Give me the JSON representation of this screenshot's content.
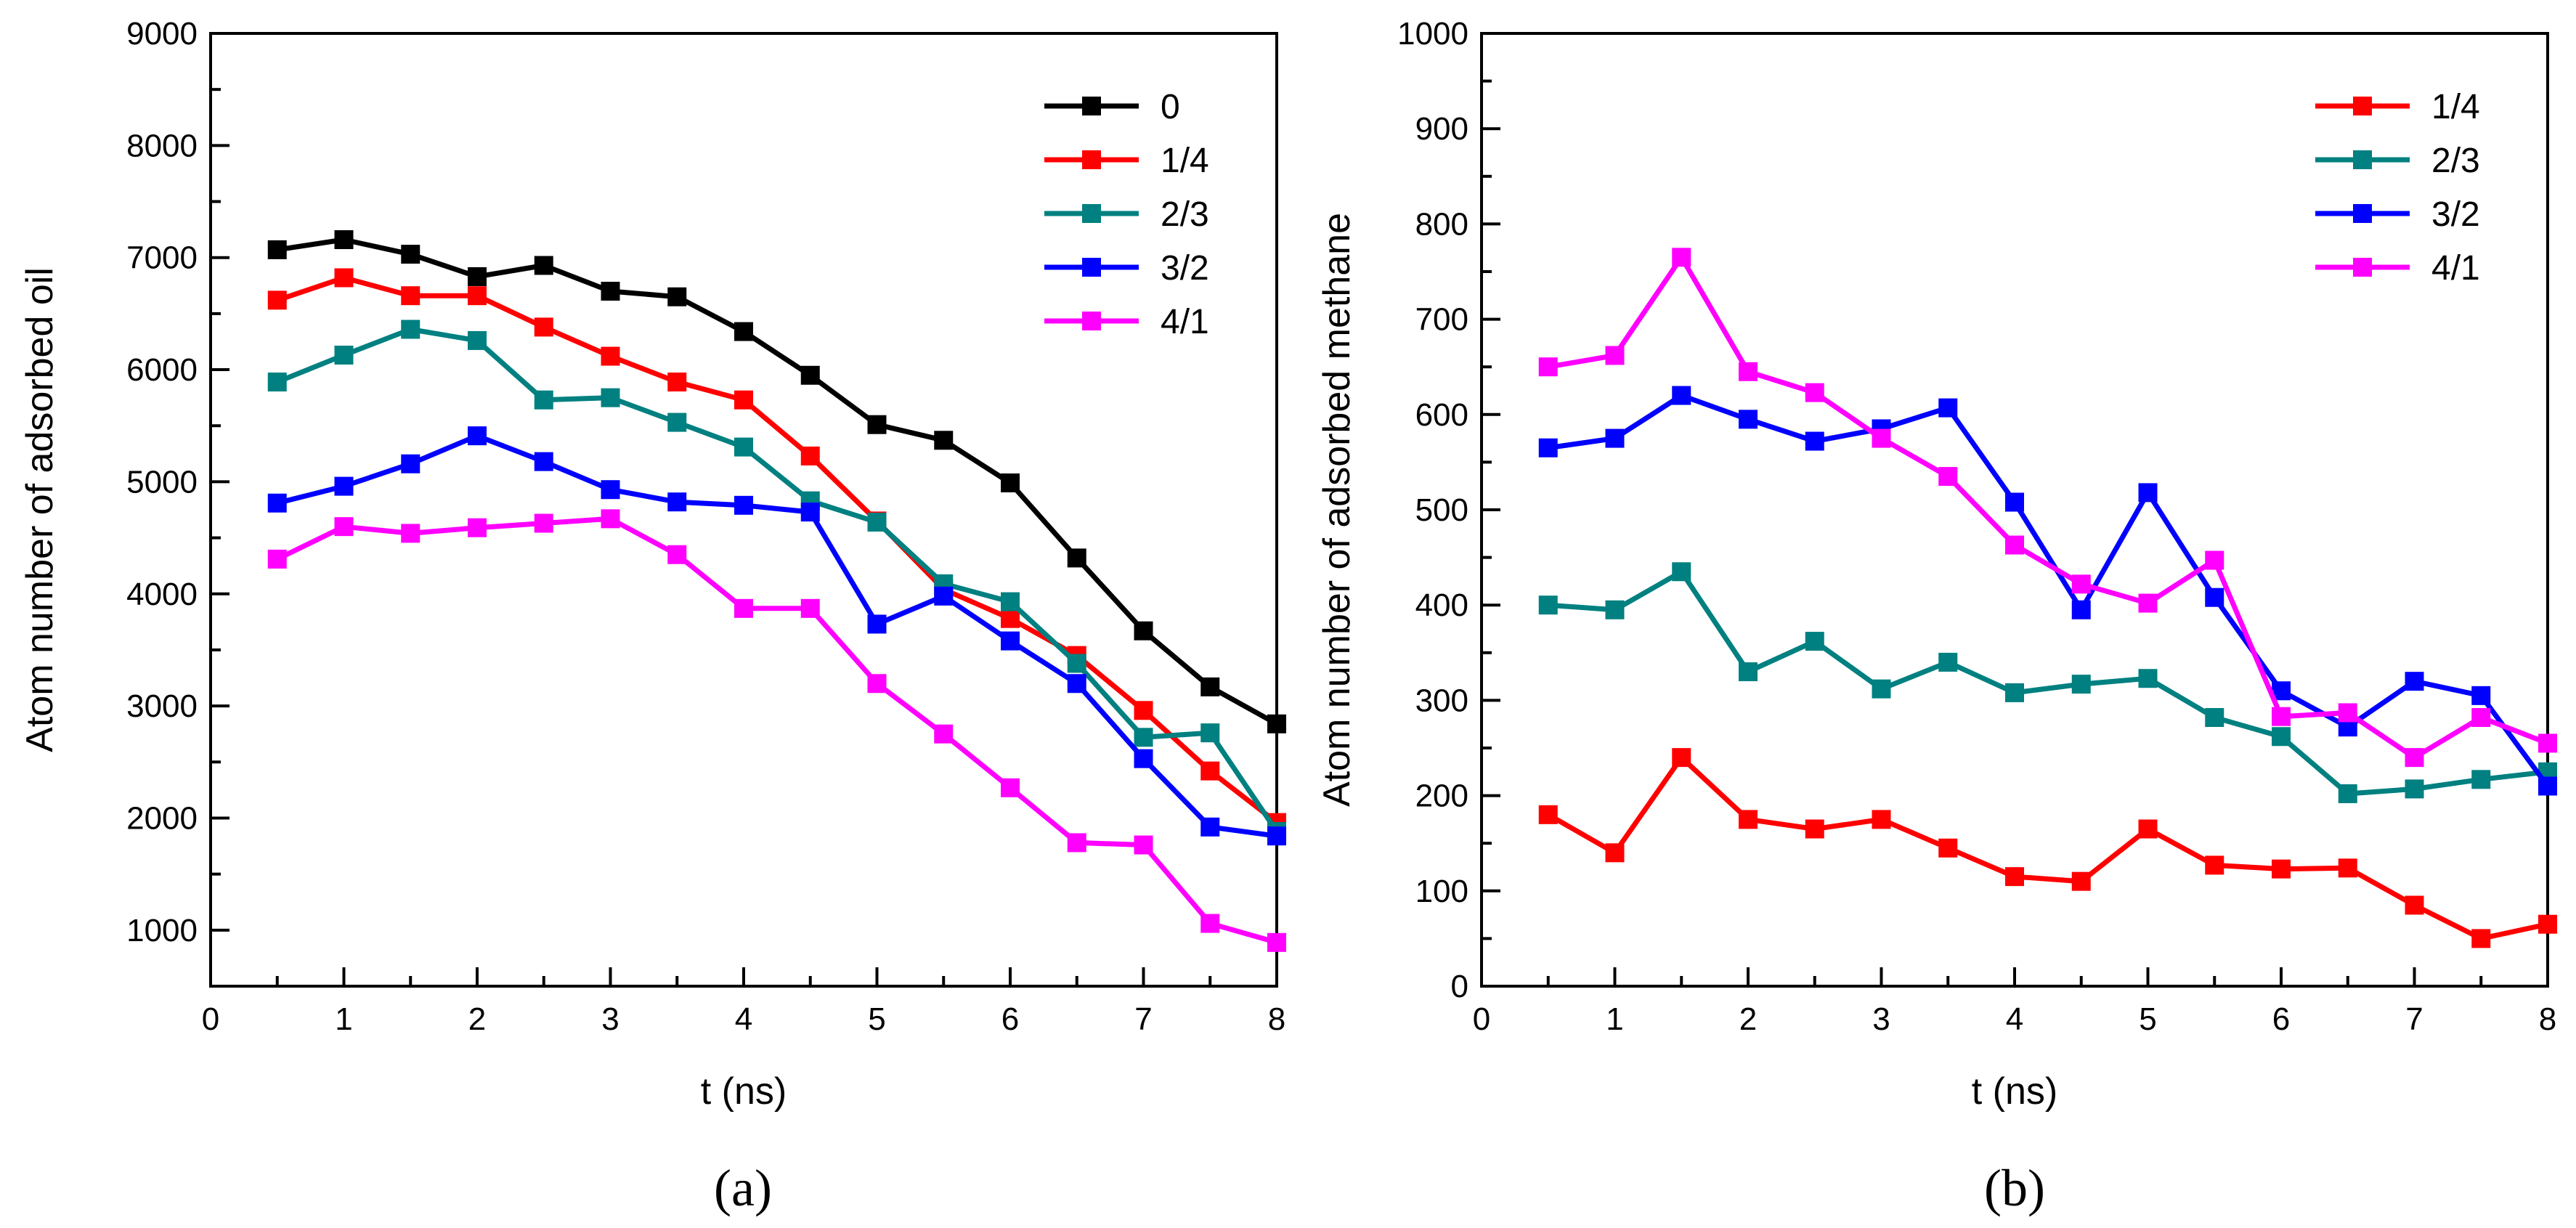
{
  "chart_data": [
    {
      "type": "line",
      "panel": "(a)",
      "title": "",
      "xlabel": "t (ns)",
      "ylabel": "Atom number of adsorbed oil",
      "xlim": [
        0,
        8
      ],
      "ylim": [
        500,
        9000
      ],
      "xticks": [
        0,
        1,
        2,
        3,
        4,
        5,
        6,
        7,
        8
      ],
      "xtick_labels": [
        "0",
        "1",
        "2",
        "3",
        "4",
        "5",
        "6",
        "7",
        "8"
      ],
      "yticks": [
        1000,
        2000,
        3000,
        4000,
        5000,
        6000,
        7000,
        8000,
        9000
      ],
      "ytick_labels": [
        "1000",
        "2000",
        "3000",
        "4000",
        "5000",
        "6000",
        "7000",
        "8000",
        "9000"
      ],
      "grid": false,
      "legend_position": "top-right",
      "x": [
        0.5,
        1,
        1.5,
        2,
        2.5,
        3,
        3.5,
        4,
        4.5,
        5,
        5.5,
        6,
        6.5,
        7,
        7.5,
        8
      ],
      "series": [
        {
          "name": "0",
          "color": "#000000",
          "values": [
            7070,
            7160,
            7030,
            6830,
            6930,
            6700,
            6650,
            6340,
            5950,
            5510,
            5370,
            4990,
            4320,
            3670,
            3170,
            2840
          ]
        },
        {
          "name": "1/4",
          "color": "#ff0000",
          "values": [
            6620,
            6820,
            6660,
            6660,
            6380,
            6120,
            5890,
            5730,
            5230,
            4650,
            4040,
            3780,
            3450,
            2960,
            2420,
            1960
          ]
        },
        {
          "name": "2/3",
          "color": "#008080",
          "values": [
            5890,
            6130,
            6360,
            6260,
            5730,
            5750,
            5530,
            5310,
            4830,
            4640,
            4090,
            3930,
            3380,
            2720,
            2760,
            1880
          ]
        },
        {
          "name": "3/2",
          "color": "#0000ff",
          "values": [
            4810,
            4960,
            5160,
            5410,
            5180,
            4930,
            4820,
            4790,
            4730,
            3730,
            3980,
            3580,
            3200,
            2530,
            1920,
            1840
          ]
        },
        {
          "name": "4/1",
          "color": "#ff00ff",
          "values": [
            4310,
            4600,
            4540,
            4590,
            4630,
            4670,
            4350,
            3870,
            3870,
            3200,
            2750,
            2270,
            1780,
            1760,
            1060,
            890
          ]
        }
      ]
    },
    {
      "type": "line",
      "panel": "(b)",
      "title": "",
      "xlabel": "t (ns)",
      "ylabel": "Atom number of adsorbed methane",
      "xlim": [
        0,
        8
      ],
      "ylim": [
        0,
        1000
      ],
      "xticks": [
        0,
        1,
        2,
        3,
        4,
        5,
        6,
        7,
        8
      ],
      "xtick_labels": [
        "0",
        "1",
        "2",
        "3",
        "4",
        "5",
        "6",
        "7",
        "8"
      ],
      "yticks": [
        0,
        100,
        200,
        300,
        400,
        500,
        600,
        700,
        800,
        900,
        1000
      ],
      "ytick_labels": [
        "0",
        "100",
        "200",
        "300",
        "400",
        "500",
        "600",
        "700",
        "800",
        "900",
        "1000"
      ],
      "grid": false,
      "legend_position": "top-right",
      "x": [
        0.5,
        1,
        1.5,
        2,
        2.5,
        3,
        3.5,
        4,
        4.5,
        5,
        5.5,
        6,
        6.5,
        7,
        7.5,
        8
      ],
      "series": [
        {
          "name": "1/4",
          "color": "#ff0000",
          "values": [
            180,
            140,
            240,
            175,
            165,
            175,
            145,
            115,
            110,
            165,
            127,
            123,
            124,
            85,
            50,
            65
          ]
        },
        {
          "name": "2/3",
          "color": "#008080",
          "values": [
            400,
            395,
            435,
            330,
            362,
            312,
            340,
            308,
            317,
            323,
            282,
            262,
            202,
            207,
            217,
            225
          ]
        },
        {
          "name": "3/2",
          "color": "#0000ff",
          "values": [
            565,
            575,
            620,
            595,
            572,
            585,
            607,
            508,
            395,
            518,
            408,
            310,
            272,
            320,
            305,
            210
          ]
        },
        {
          "name": "4/1",
          "color": "#ff00ff",
          "values": [
            650,
            662,
            765,
            645,
            623,
            575,
            535,
            463,
            422,
            402,
            447,
            283,
            287,
            240,
            282,
            255
          ]
        }
      ]
    }
  ]
}
